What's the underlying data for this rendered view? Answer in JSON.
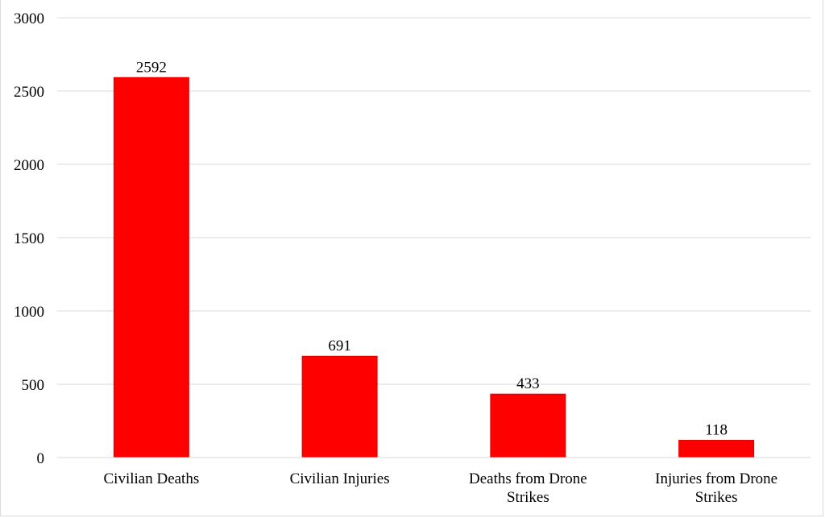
{
  "chart_data": {
    "type": "bar",
    "title": "",
    "xlabel": "",
    "ylabel": "",
    "categories": [
      [
        "Civilian Deaths"
      ],
      [
        "Civilian Injuries"
      ],
      [
        "Deaths from Drone",
        "Strikes"
      ],
      [
        "Injuries from Drone",
        "Strikes"
      ]
    ],
    "values": [
      2592,
      691,
      433,
      118
    ],
    "data_labels": [
      "2592",
      "691",
      "433",
      "118"
    ],
    "ylim": [
      0,
      3000
    ],
    "yticks": [
      0,
      500,
      1000,
      1500,
      2000,
      2500,
      3000
    ],
    "ytick_labels": [
      "0",
      "500",
      "1000",
      "1500",
      "2000",
      "2500",
      "3000"
    ],
    "grid": true,
    "legend": "none",
    "bar_color": "#ff0000",
    "bar_edge_color": "#e00000",
    "grid_color": "#d9d9d9"
  }
}
